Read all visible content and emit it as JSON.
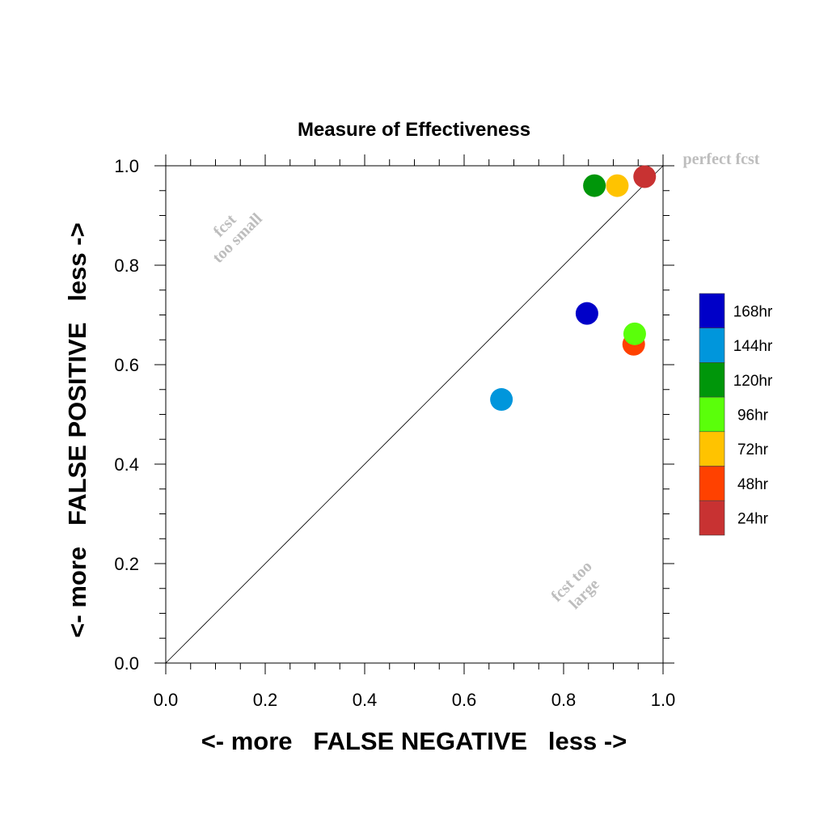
{
  "chart_data": {
    "type": "scatter",
    "title": "Measure of Effectiveness",
    "xlabel": "<- more   FALSE NEGATIVE   less ->",
    "ylabel": "<- more   FALSE POSITIVE   less ->",
    "xlim": [
      0.0,
      1.0
    ],
    "ylim": [
      0.0,
      1.0
    ],
    "xticks": [
      "0.0",
      "0.2",
      "0.4",
      "0.6",
      "0.8",
      "1.0"
    ],
    "yticks": [
      "0.0",
      "0.2",
      "0.4",
      "0.6",
      "0.8",
      "1.0"
    ],
    "grid": false,
    "reference_line": "diagonal",
    "annotations": {
      "perfect": "perfect fcst",
      "too_small_line1": "fcst",
      "too_small_line2": "too small",
      "too_large_line1": "fcst too",
      "too_large_line2": "large"
    },
    "legend_position": "right",
    "series": [
      {
        "name": "168hr",
        "color": "#0000c8",
        "x": 0.847,
        "y": 0.703
      },
      {
        "name": "144hr",
        "color": "#0096dc",
        "x": 0.675,
        "y": 0.53
      },
      {
        "name": "120hr",
        "color": "#00960a",
        "x": 0.862,
        "y": 0.96
      },
      {
        "name": "96hr",
        "color": "#5aff0a",
        "x": 0.943,
        "y": 0.662
      },
      {
        "name": "72hr",
        "color": "#ffc300",
        "x": 0.908,
        "y": 0.96
      },
      {
        "name": "48hr",
        "color": "#ff4100",
        "x": 0.941,
        "y": 0.641
      },
      {
        "name": "24hr",
        "color": "#c83232",
        "x": 0.963,
        "y": 0.978
      }
    ]
  }
}
